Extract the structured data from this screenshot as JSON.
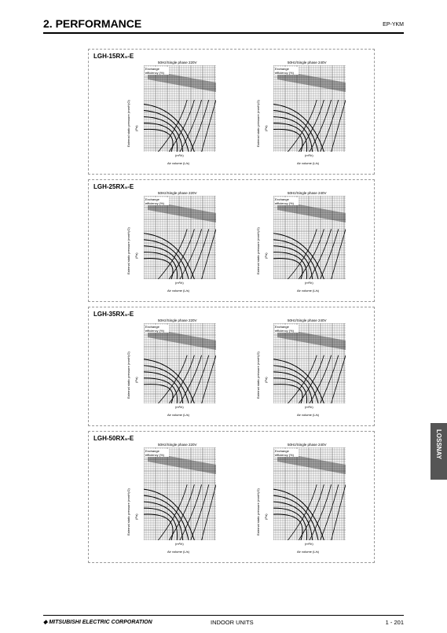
{
  "header": {
    "title": "2. PERFORMANCE",
    "code": "EP-YKM"
  },
  "sections": [
    {
      "model": "LGH-15RX₅-E",
      "panels": [
        {
          "title": "50Hz/Single phase 220V"
        },
        {
          "title": "50Hz/Single phase 240V"
        }
      ]
    },
    {
      "model": "LGH-25RX₅-E",
      "panels": [
        {
          "title": "50Hz/Single phase 220V"
        },
        {
          "title": "50Hz/Single phase 240V"
        }
      ]
    },
    {
      "model": "LGH-35RX₅-E",
      "panels": [
        {
          "title": "50Hz/Single phase 220V"
        },
        {
          "title": "50Hz/Single phase 240V"
        }
      ]
    },
    {
      "model": "LGH-50RX₅-E",
      "panels": [
        {
          "title": "50Hz/Single phase 220V"
        },
        {
          "title": "50Hz/Single phase 240V"
        }
      ]
    }
  ],
  "axes": {
    "efficiency": "Exchange efficiency (%)",
    "pressure": "External static pressure (mmH₂O)",
    "pa": "(Pa)",
    "flow": "(m³/h)",
    "air_volume": "Air volume (L/s)"
  },
  "side_tab": "LOSSNAY",
  "footer": {
    "company": "MITSUBISHI ELECTRIC CORPORATION",
    "section": "INDOOR UNITS",
    "page": "1 - 201"
  }
}
